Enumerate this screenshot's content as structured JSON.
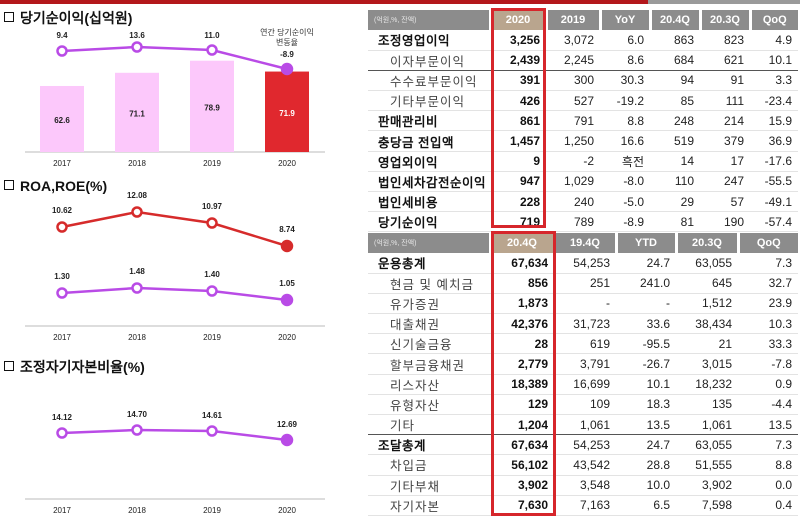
{
  "sections": {
    "net_income": {
      "title": "당기순이익(십억원)",
      "annotation_line1": "연간 당기순이익",
      "annotation_line2": "변동율"
    },
    "roa_roe": {
      "title": "ROA,ROE(%)"
    },
    "capital": {
      "title": "조정자기자본비율(%)"
    }
  },
  "chart_data": [
    {
      "type": "bar",
      "title": "당기순이익(십억원)",
      "categories": [
        "2017",
        "2018",
        "2019",
        "2020"
      ],
      "series": [
        {
          "name": "당기순이익",
          "values": [
            62.6,
            71.1,
            78.9,
            71.9
          ],
          "colors": [
            "#fcc8fb",
            "#fcc8fb",
            "#fcc8fb",
            "#e0282e"
          ]
        },
        {
          "name": "연간 당기순이익 변동율",
          "type": "line",
          "values": [
            9.4,
            13.6,
            11.0,
            -8.9
          ],
          "color": "#b94be6"
        }
      ],
      "xlabel": "",
      "ylabel": "",
      "grid": false
    },
    {
      "type": "line",
      "title": "ROA,ROE(%)",
      "categories": [
        "2017",
        "2018",
        "2019",
        "2020"
      ],
      "series": [
        {
          "name": "ROE",
          "values": [
            10.62,
            12.08,
            10.97,
            8.74
          ],
          "color": "#d62b2b"
        },
        {
          "name": "ROA",
          "values": [
            1.3,
            1.48,
            1.4,
            1.05
          ],
          "color": "#b94be6"
        }
      ],
      "grid": false
    },
    {
      "type": "line",
      "title": "조정자기자본비율(%)",
      "categories": [
        "2017",
        "2018",
        "2019",
        "2020"
      ],
      "series": [
        {
          "name": "조정자기자본비율",
          "values": [
            14.12,
            14.7,
            14.61,
            12.69
          ],
          "color": "#b94be6"
        }
      ],
      "grid": false
    },
    {
      "type": "table",
      "title": "손익",
      "unit": "(억원,%, 잔액)",
      "columns": [
        "2020",
        "2019",
        "YoY",
        "20.4Q",
        "20.3Q",
        "QoQ"
      ],
      "rows": [
        {
          "label": "조정영업이익",
          "values": [
            "3,256",
            "3,072",
            "6.0",
            "863",
            "823",
            "4.9"
          ]
        },
        {
          "label": "이자부문이익",
          "values": [
            "2,439",
            "2,245",
            "8.6",
            "684",
            "621",
            "10.1"
          ]
        },
        {
          "label": "수수료부문이익",
          "values": [
            "391",
            "300",
            "30.3",
            "94",
            "91",
            "3.3"
          ]
        },
        {
          "label": "기타부문이익",
          "values": [
            "426",
            "527",
            "-19.2",
            "85",
            "111",
            "-23.4"
          ]
        },
        {
          "label": "판매관리비",
          "values": [
            "861",
            "791",
            "8.8",
            "248",
            "214",
            "15.9"
          ]
        },
        {
          "label": "충당금 전입액",
          "values": [
            "1,457",
            "1,250",
            "16.6",
            "519",
            "379",
            "36.9"
          ]
        },
        {
          "label": "영업외이익",
          "values": [
            "9",
            "-2",
            "흑전",
            "14",
            "17",
            "-17.6"
          ]
        },
        {
          "label": "법인세차감전순이익",
          "values": [
            "947",
            "1,029",
            "-8.0",
            "110",
            "247",
            "-55.5"
          ]
        },
        {
          "label": "법인세비용",
          "values": [
            "228",
            "240",
            "-5.0",
            "29",
            "57",
            "-49.1"
          ]
        },
        {
          "label": "당기순이익",
          "values": [
            "719",
            "789",
            "-8.9",
            "81",
            "190",
            "-57.4"
          ]
        }
      ]
    },
    {
      "type": "table",
      "title": "재무상태",
      "unit": "(억원,%, 잔액)",
      "columns": [
        "20.4Q",
        "19.4Q",
        "YTD",
        "20.3Q",
        "QoQ"
      ],
      "rows": [
        {
          "label": "운용총계",
          "values": [
            "67,634",
            "54,253",
            "24.7",
            "63,055",
            "7.3"
          ]
        },
        {
          "label": "현금 및 예치금",
          "values": [
            "856",
            "251",
            "241.0",
            "645",
            "32.7"
          ]
        },
        {
          "label": "유가증권",
          "values": [
            "1,873",
            "-",
            "-",
            "1,512",
            "23.9"
          ]
        },
        {
          "label": "대출채권",
          "values": [
            "42,376",
            "31,723",
            "33.6",
            "38,434",
            "10.3"
          ]
        },
        {
          "label": "신기술금융",
          "values": [
            "28",
            "619",
            "-95.5",
            "21",
            "33.3"
          ]
        },
        {
          "label": "할부금융채권",
          "values": [
            "2,779",
            "3,791",
            "-26.7",
            "3,015",
            "-7.8"
          ]
        },
        {
          "label": "리스자산",
          "values": [
            "18,389",
            "16,699",
            "10.1",
            "18,232",
            "0.9"
          ]
        },
        {
          "label": "유형자산",
          "values": [
            "129",
            "109",
            "18.3",
            "135",
            "-4.4"
          ]
        },
        {
          "label": "기타",
          "values": [
            "1,204",
            "1,061",
            "13.5",
            "1,061",
            "13.5"
          ]
        },
        {
          "label": "조달총계",
          "values": [
            "67,634",
            "54,253",
            "24.7",
            "63,055",
            "7.3"
          ]
        },
        {
          "label": "차입금",
          "values": [
            "56,102",
            "43,542",
            "28.8",
            "51,555",
            "8.8"
          ]
        },
        {
          "label": "기타부채",
          "values": [
            "3,902",
            "3,548",
            "10.0",
            "3,902",
            "0.0"
          ]
        },
        {
          "label": "자기자본",
          "values": [
            "7,630",
            "7,163",
            "6.5",
            "7,598",
            "0.4"
          ]
        }
      ]
    }
  ],
  "colors": {
    "accent_red": "#e0282e",
    "highlight_border": "#d6262b",
    "purple": "#b94be6",
    "pink_bar": "#fcc8fb",
    "header_gray": "#8c8c8c",
    "header_highlight": "#b9a58e"
  }
}
